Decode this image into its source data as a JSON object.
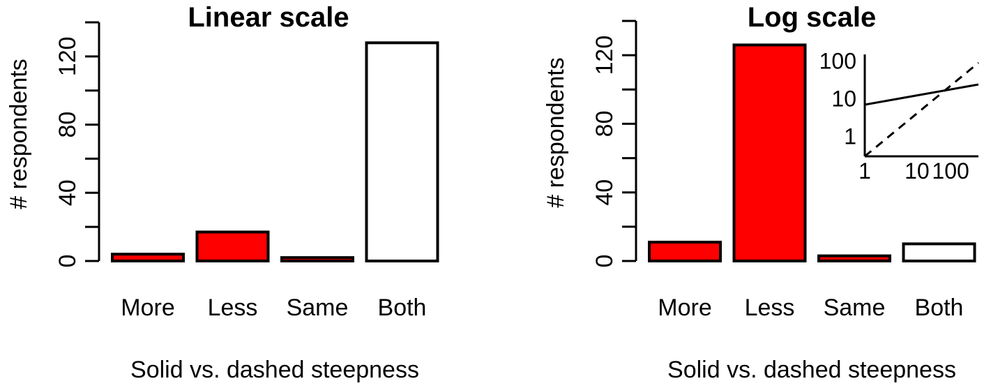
{
  "colors": {
    "highlight": "#ff0000",
    "plain": "#ffffff",
    "stroke": "#000000"
  },
  "chart_data": [
    {
      "type": "bar",
      "title": "Linear scale",
      "xlabel": "Solid vs. dashed steepness",
      "ylabel": "# respondents",
      "categories": [
        "More",
        "Less",
        "Same",
        "Both"
      ],
      "values": [
        4,
        17,
        2,
        128
      ],
      "bar_colors": [
        "#ff0000",
        "#ff0000",
        "#ff0000",
        "#ffffff"
      ],
      "ylim": [
        0,
        140
      ],
      "yticks": [
        0,
        40,
        80,
        120
      ],
      "grid": false
    },
    {
      "type": "bar",
      "title": "Log scale",
      "xlabel": "Solid vs. dashed steepness",
      "ylabel": "# respondents",
      "categories": [
        "More",
        "Less",
        "Same",
        "Both"
      ],
      "values": [
        11,
        126,
        3,
        10
      ],
      "bar_colors": [
        "#ff0000",
        "#ff0000",
        "#ff0000",
        "#ffffff"
      ],
      "ylim": [
        0,
        140
      ],
      "yticks": [
        0,
        40,
        80,
        120
      ],
      "grid": false,
      "inset": {
        "type": "line",
        "scale": "log",
        "xticks": [
          "1",
          "10",
          "100"
        ],
        "yticks": [
          "1",
          "10",
          "100"
        ],
        "xlim": [
          1,
          150
        ],
        "ylim": [
          0.3,
          150
        ],
        "series": [
          {
            "style": "solid",
            "x": [
              1,
              150
            ],
            "y": [
              7,
              24
            ]
          },
          {
            "style": "dashed",
            "x": [
              1,
              150
            ],
            "y": [
              0.3,
              90
            ]
          }
        ]
      }
    }
  ]
}
